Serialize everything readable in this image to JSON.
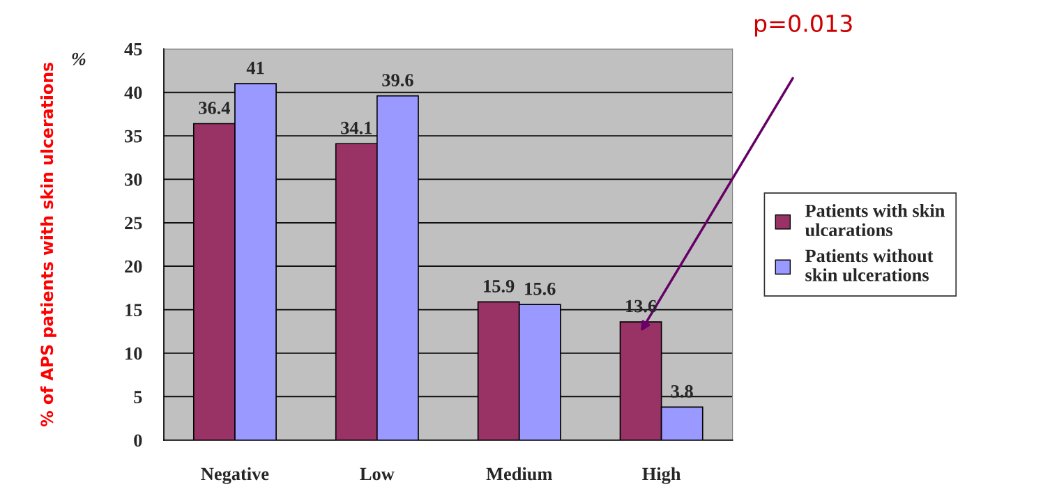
{
  "chart_data": {
    "type": "bar",
    "ylabel": "% of APS patients with skin ulcerations",
    "categories": [
      "Negative",
      "Low",
      "Medium",
      "High"
    ],
    "series": [
      {
        "name": "Patients with skin ulcarations",
        "color": "#993366",
        "values": [
          36.4,
          34.1,
          15.9,
          13.6
        ]
      },
      {
        "name": "Patients without skin ulcerations",
        "color": "#9999ff",
        "values": [
          41,
          39.6,
          15.6,
          3.8
        ]
      }
    ],
    "ylim": [
      0,
      45
    ],
    "yticks": [
      0,
      5,
      10,
      15,
      20,
      25,
      30,
      35,
      40,
      45
    ],
    "grid": "y",
    "legend": "right",
    "data_labels": true,
    "annotations": [
      "%",
      "p=0.013"
    ]
  }
}
